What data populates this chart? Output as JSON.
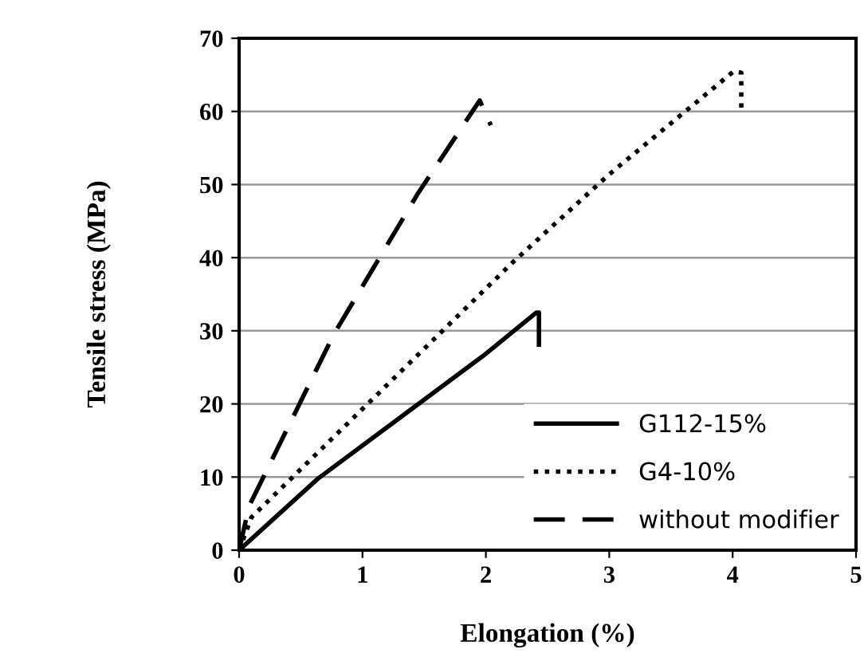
{
  "chart_data": {
    "type": "line",
    "xlabel": "Elongation (%)",
    "ylabel": "Tensile stress (MPa)",
    "xlim": [
      0,
      5
    ],
    "ylim": [
      0,
      70
    ],
    "xticks": [
      0,
      1,
      2,
      3,
      4,
      5
    ],
    "yticks": [
      0,
      10,
      20,
      30,
      40,
      50,
      60,
      70
    ],
    "grid": "y",
    "legend": "bottom right",
    "series": [
      {
        "name": "G112-15%",
        "color": "#000000",
        "line_style": "solid",
        "x": [
          0,
          0.64,
          1.98,
          2.41,
          2.43,
          2.43
        ],
        "values": [
          0,
          9.8,
          26.6,
          32.5,
          32.5,
          27.8
        ]
      },
      {
        "name": "G4-10%",
        "color": "#000000",
        "line_style": "dotted",
        "x": [
          0,
          0.1,
          2.22,
          3.0,
          4.01,
          4.07,
          4.07
        ],
        "values": [
          0,
          4.5,
          39.4,
          51.4,
          65.5,
          65.3,
          60
        ]
      },
      {
        "name": "without modifier",
        "color": "#000000",
        "line_style": "dashed",
        "x": [
          0,
          0.08,
          0.77,
          1.45,
          1.95,
          2.04
        ],
        "values": [
          0,
          6,
          29.6,
          48.8,
          61.5,
          58.1
        ]
      }
    ]
  }
}
